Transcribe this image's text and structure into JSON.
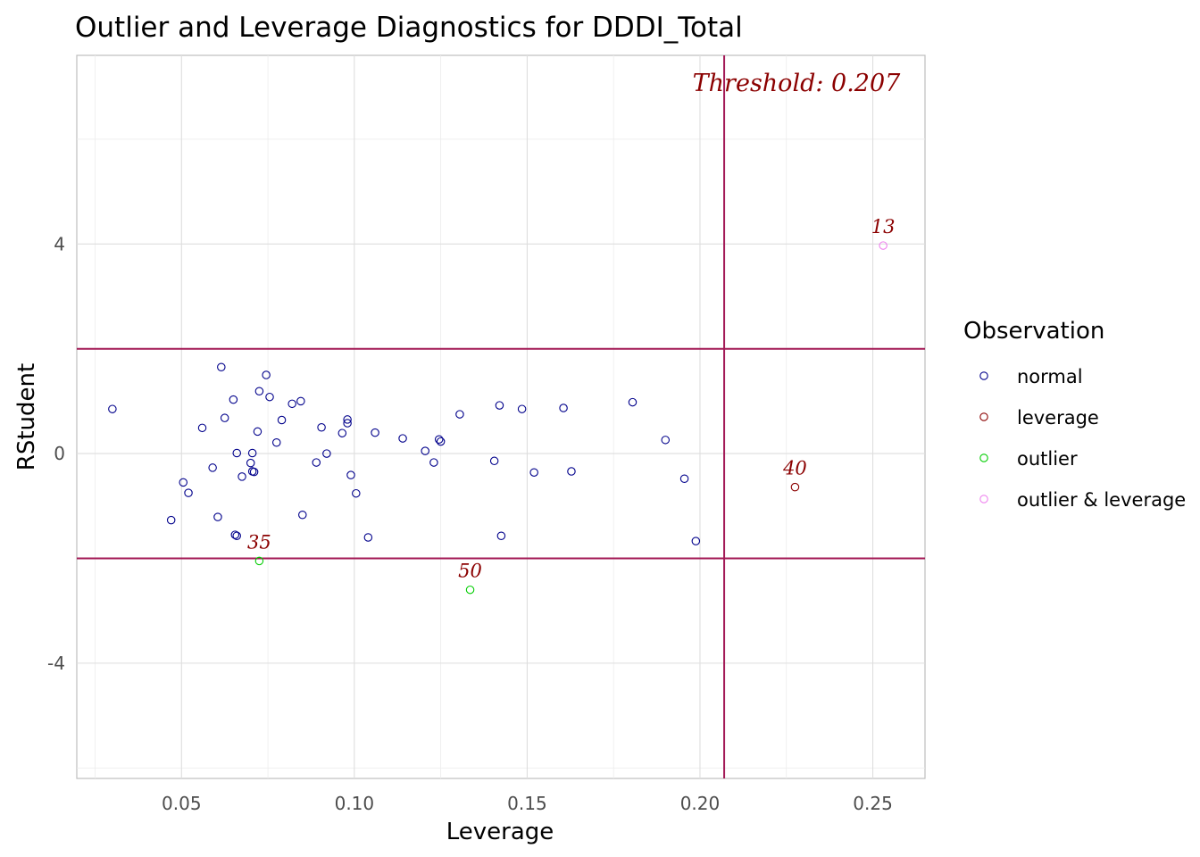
{
  "chart_data": {
    "type": "scatter",
    "title": "Outlier and Leverage Diagnostics for DDDI_Total",
    "xlabel": "Leverage",
    "ylabel": "RStudent",
    "xlim": [
      0.0197,
      0.2651
    ],
    "ylim": [
      -6.2,
      7.6
    ],
    "x_ticks": [
      0.05,
      0.1,
      0.15,
      0.2,
      0.25
    ],
    "x_tick_labels": [
      "0.05",
      "0.10",
      "0.15",
      "0.20",
      "0.25"
    ],
    "y_ticks": [
      -4,
      0,
      4
    ],
    "y_tick_labels": [
      "-4",
      "0",
      "4"
    ],
    "grid": true,
    "threshold_label": "Threshold: 0.207",
    "vline": 0.207,
    "hlines": [
      2,
      -2
    ],
    "line_color": "#a31a56",
    "legend": {
      "title": "Observation",
      "position": "right",
      "entries": [
        {
          "label": "normal",
          "color": "#00008b"
        },
        {
          "label": "leverage",
          "color": "#8b0000"
        },
        {
          "label": "outlier",
          "color": "#00cd00"
        },
        {
          "label": "outlier & leverage",
          "color": "#ee82ee"
        }
      ]
    },
    "series": [
      {
        "name": "normal",
        "color": "#00008b",
        "points": [
          {
            "x": 0.03,
            "y": 0.85
          },
          {
            "x": 0.047,
            "y": -1.27
          },
          {
            "x": 0.0505,
            "y": -0.55
          },
          {
            "x": 0.052,
            "y": -0.75
          },
          {
            "x": 0.056,
            "y": 0.49
          },
          {
            "x": 0.059,
            "y": -0.27
          },
          {
            "x": 0.0605,
            "y": -1.21
          },
          {
            "x": 0.0615,
            "y": 1.65
          },
          {
            "x": 0.0625,
            "y": 0.68
          },
          {
            "x": 0.065,
            "y": 1.03
          },
          {
            "x": 0.0655,
            "y": -1.55
          },
          {
            "x": 0.066,
            "y": -1.57
          },
          {
            "x": 0.066,
            "y": 0.01
          },
          {
            "x": 0.0675,
            "y": -0.44
          },
          {
            "x": 0.07,
            "y": -0.18
          },
          {
            "x": 0.0705,
            "y": -0.34
          },
          {
            "x": 0.0705,
            "y": 0.01
          },
          {
            "x": 0.071,
            "y": -0.35
          },
          {
            "x": 0.072,
            "y": 0.42
          },
          {
            "x": 0.0725,
            "y": 1.19
          },
          {
            "x": 0.0745,
            "y": 1.5
          },
          {
            "x": 0.0755,
            "y": 1.08
          },
          {
            "x": 0.0775,
            "y": 0.21
          },
          {
            "x": 0.079,
            "y": 0.64
          },
          {
            "x": 0.082,
            "y": 0.95
          },
          {
            "x": 0.0845,
            "y": 1.0
          },
          {
            "x": 0.085,
            "y": -1.17
          },
          {
            "x": 0.089,
            "y": -0.17
          },
          {
            "x": 0.0905,
            "y": 0.5
          },
          {
            "x": 0.092,
            "y": 0.0
          },
          {
            "x": 0.0965,
            "y": 0.39
          },
          {
            "x": 0.098,
            "y": 0.58
          },
          {
            "x": 0.098,
            "y": 0.65
          },
          {
            "x": 0.099,
            "y": -0.41
          },
          {
            "x": 0.1005,
            "y": -0.76
          },
          {
            "x": 0.104,
            "y": -1.6
          },
          {
            "x": 0.106,
            "y": 0.4
          },
          {
            "x": 0.114,
            "y": 0.29
          },
          {
            "x": 0.1205,
            "y": 0.05
          },
          {
            "x": 0.123,
            "y": -0.17
          },
          {
            "x": 0.1245,
            "y": 0.27
          },
          {
            "x": 0.125,
            "y": 0.23
          },
          {
            "x": 0.1305,
            "y": 0.75
          },
          {
            "x": 0.1405,
            "y": -0.14
          },
          {
            "x": 0.142,
            "y": 0.92
          },
          {
            "x": 0.1425,
            "y": -1.57
          },
          {
            "x": 0.1485,
            "y": 0.85
          },
          {
            "x": 0.152,
            "y": -0.36
          },
          {
            "x": 0.1605,
            "y": 0.87
          },
          {
            "x": 0.1628,
            "y": -0.34
          },
          {
            "x": 0.1805,
            "y": 0.98
          },
          {
            "x": 0.19,
            "y": 0.26
          },
          {
            "x": 0.1955,
            "y": -0.48
          },
          {
            "x": 0.1988,
            "y": -1.67
          }
        ]
      },
      {
        "name": "leverage",
        "color": "#8b0000",
        "points": [
          {
            "x": 0.2275,
            "y": -0.64,
            "label": "40"
          }
        ]
      },
      {
        "name": "outlier",
        "color": "#00cd00",
        "points": [
          {
            "x": 0.0725,
            "y": -2.05,
            "label": "35"
          },
          {
            "x": 0.1335,
            "y": -2.6,
            "label": "50"
          }
        ]
      },
      {
        "name": "outlier & leverage",
        "color": "#ee82ee",
        "points": [
          {
            "x": 0.253,
            "y": 3.97,
            "label": "13"
          }
        ]
      }
    ]
  }
}
